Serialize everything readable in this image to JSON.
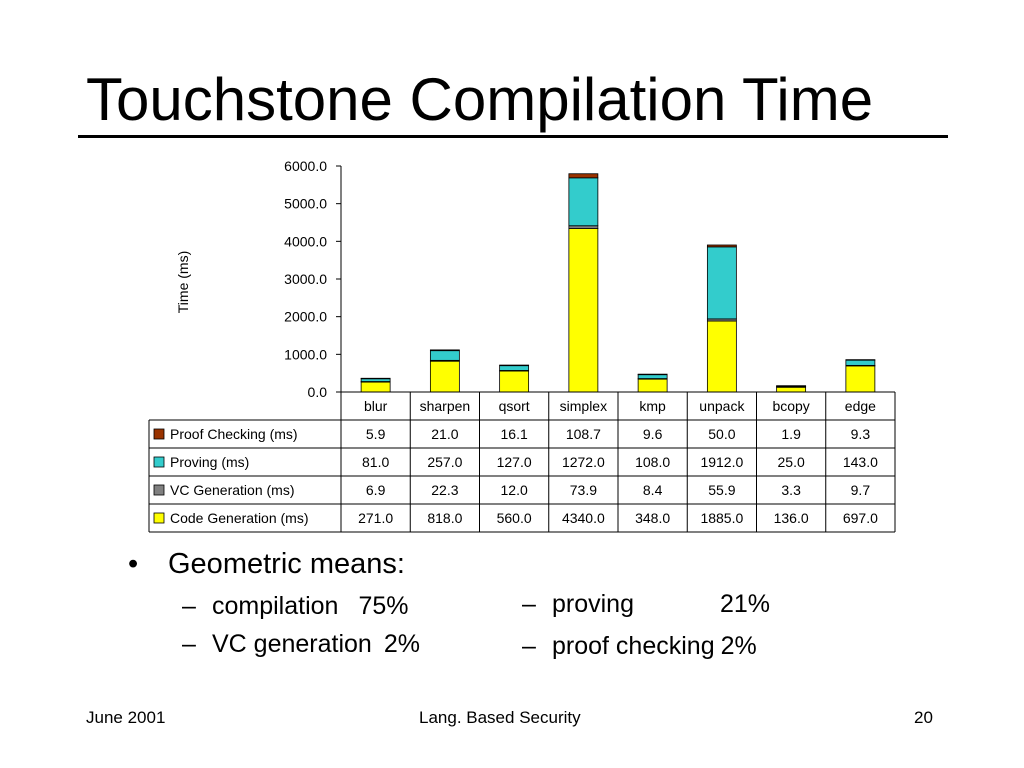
{
  "slide": {
    "title": "Touchstone Compilation Time",
    "bullet_main": "Geometric means:",
    "bullet_symbol": "•",
    "dash_symbol": "–",
    "left_items": [
      {
        "label": "compilation",
        "value": "75%"
      },
      {
        "label": "VC generation",
        "value": "2%"
      }
    ],
    "right_items": [
      {
        "label": "proving",
        "value": "21%"
      },
      {
        "label": "proof checking",
        "value": "2%"
      }
    ],
    "footer": {
      "left": "June 2001",
      "center": "Lang. Based Security",
      "right": "20"
    }
  },
  "chart_data": {
    "type": "bar",
    "stacked": true,
    "categories": [
      "blur",
      "sharpen",
      "qsort",
      "simplex",
      "kmp",
      "unpack",
      "bcopy",
      "edge"
    ],
    "ylabel": "Time (ms)",
    "xlabel": "",
    "ylim": [
      0,
      6000
    ],
    "yticks": [
      "0.0",
      "1000.0",
      "2000.0",
      "3000.0",
      "4000.0",
      "5000.0",
      "6000.0"
    ],
    "grid": false,
    "legend_placement": "data-table-left",
    "series": [
      {
        "name": "Code Generation (ms)",
        "color": "#ffff00",
        "values": [
          271.0,
          818.0,
          560.0,
          4340.0,
          348.0,
          1885.0,
          136.0,
          697.0
        ],
        "labels": [
          "271.0",
          "818.0",
          "560.0",
          "4340.0",
          "348.0",
          "1885.0",
          "136.0",
          "697.0"
        ]
      },
      {
        "name": "VC Generation (ms)",
        "color": "#808080",
        "values": [
          6.9,
          22.3,
          12.0,
          73.9,
          8.4,
          55.9,
          3.3,
          9.7
        ],
        "labels": [
          "6.9",
          "22.3",
          "12.0",
          "73.9",
          "8.4",
          "55.9",
          "3.3",
          "9.7"
        ]
      },
      {
        "name": "Proving (ms)",
        "color": "#33cccc",
        "values": [
          81.0,
          257.0,
          127.0,
          1272.0,
          108.0,
          1912.0,
          25.0,
          143.0
        ],
        "labels": [
          "81.0",
          "257.0",
          "127.0",
          "1272.0",
          "108.0",
          "1912.0",
          "25.0",
          "143.0"
        ]
      },
      {
        "name": "Proof Checking (ms)",
        "color": "#993300",
        "values": [
          5.9,
          21.0,
          16.1,
          108.7,
          9.6,
          50.0,
          1.9,
          9.3
        ],
        "labels": [
          "5.9",
          "21.0",
          "16.1",
          "108.7",
          "9.6",
          "50.0",
          "1.9",
          "9.3"
        ]
      }
    ],
    "table_row_order": [
      3,
      2,
      1,
      0
    ]
  }
}
